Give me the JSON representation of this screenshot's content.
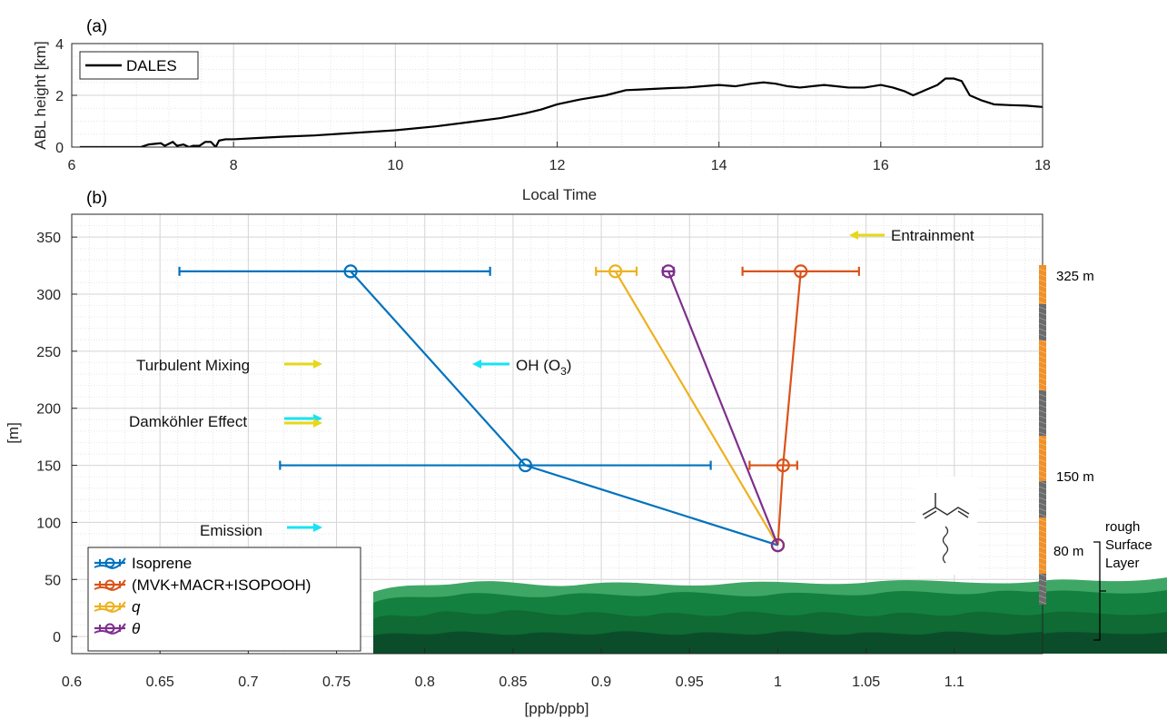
{
  "colors": {
    "isoprene": "#0072BD",
    "mvk": "#D95319",
    "q": "#EDB120",
    "theta": "#7E2F8E",
    "yellow_arrow": "#E6D81A",
    "cyan_arrow": "#19E3F2",
    "forest_dark": "#0B4D2A",
    "forest_mid": "#14803F",
    "forest_light": "#3FA766",
    "tower_orange": "#F0912A",
    "tower_grey": "#6B6B6B"
  },
  "chart_data": [
    {
      "panel_label": "(a)",
      "type": "line",
      "xlabel": "Local Time",
      "ylabel": "ABL height [km]",
      "xlim": [
        6,
        18
      ],
      "ylim": [
        0,
        4
      ],
      "xticks": [
        "6",
        "8",
        "10",
        "12",
        "14",
        "16",
        "18"
      ],
      "yticks": [
        "0",
        "2",
        "4"
      ],
      "grid": "on (major and minor)",
      "legend_position": "top-left",
      "series": [
        {
          "name": "DALES",
          "x": [
            6.1,
            6.85,
            6.95,
            7.1,
            7.15,
            7.25,
            7.3,
            7.38,
            7.45,
            7.5,
            7.58,
            7.65,
            7.72,
            7.78,
            7.82,
            7.9,
            8.0,
            8.3,
            8.6,
            9.0,
            9.5,
            10.0,
            10.5,
            11.0,
            11.3,
            11.6,
            11.8,
            12.0,
            12.3,
            12.6,
            12.85,
            13.0,
            13.2,
            13.4,
            13.6,
            13.8,
            14.0,
            14.2,
            14.4,
            14.55,
            14.7,
            14.85,
            15.0,
            15.15,
            15.3,
            15.45,
            15.6,
            15.8,
            16.0,
            16.15,
            16.3,
            16.4,
            16.55,
            16.7,
            16.8,
            16.9,
            17.0,
            17.1,
            17.25,
            17.4,
            17.6,
            17.8,
            18.0
          ],
          "y": [
            0.0,
            0.0,
            0.1,
            0.15,
            0.05,
            0.2,
            0.05,
            0.1,
            0.0,
            0.05,
            0.05,
            0.2,
            0.2,
            0.0,
            0.25,
            0.3,
            0.3,
            0.35,
            0.4,
            0.45,
            0.55,
            0.65,
            0.8,
            1.0,
            1.12,
            1.3,
            1.45,
            1.65,
            1.85,
            2.0,
            2.2,
            2.22,
            2.25,
            2.28,
            2.3,
            2.35,
            2.4,
            2.35,
            2.45,
            2.5,
            2.45,
            2.35,
            2.3,
            2.35,
            2.4,
            2.35,
            2.3,
            2.3,
            2.4,
            2.3,
            2.15,
            2.0,
            2.2,
            2.4,
            2.65,
            2.65,
            2.55,
            2.0,
            1.8,
            1.65,
            1.62,
            1.6,
            1.55
          ]
        }
      ]
    },
    {
      "panel_label": "(b)",
      "type": "line",
      "xlabel": "[ppb/ppb]",
      "ylabel": "[m]",
      "xlim": [
        0.6,
        1.15
      ],
      "ylim": [
        -15,
        370
      ],
      "xticks": [
        "0.6",
        "0.65",
        "0.7",
        "0.75",
        "0.8",
        "0.85",
        "0.9",
        "0.95",
        "1",
        "1.05",
        "1.1"
      ],
      "yticks": [
        "0",
        "50",
        "100",
        "150",
        "200",
        "250",
        "300",
        "350"
      ],
      "grid": "on (major and minor)",
      "legend_position": "bottom-left",
      "series": [
        {
          "name": "Isoprene",
          "y": [
            320,
            150,
            80
          ],
          "x": [
            0.758,
            0.857,
            1.0
          ],
          "xerr_low": [
            0.661,
            0.718,
            1.0
          ],
          "xerr_high": [
            0.837,
            0.962,
            1.0
          ]
        },
        {
          "name": "(MVK+MACR+ISOPOOH)",
          "y": [
            320,
            150,
            80
          ],
          "x": [
            1.013,
            1.003,
            1.0
          ],
          "xerr_low": [
            0.98,
            0.984,
            1.0
          ],
          "xerr_high": [
            1.046,
            1.011,
            1.0
          ]
        },
        {
          "name": "q",
          "y": [
            320,
            150,
            80
          ],
          "x": [
            0.908,
            null,
            1.0
          ],
          "xerr_low": [
            0.897,
            null,
            1.0
          ],
          "xerr_high": [
            0.92,
            null,
            1.0
          ]
        },
        {
          "name": "θ",
          "y": [
            320,
            150,
            80
          ],
          "x": [
            0.938,
            null,
            1.0
          ],
          "xerr_low": [
            0.935,
            null,
            1.0
          ],
          "xerr_high": [
            0.941,
            null,
            1.0
          ]
        }
      ],
      "annotations": {
        "entrainment": "Entrainment",
        "turbulent_mixing": "Turbulent Mixing",
        "oh": "OH (O",
        "oh_sub": "3",
        "oh_close": ")",
        "damkohler": "Damköhler Effect",
        "emission": "Emission"
      },
      "tower_labels": {
        "h325": "325 m",
        "h150": "150 m",
        "h80": "80 m",
        "rough1": "rough",
        "rough2": "Surface",
        "rough3": "Layer"
      }
    }
  ]
}
